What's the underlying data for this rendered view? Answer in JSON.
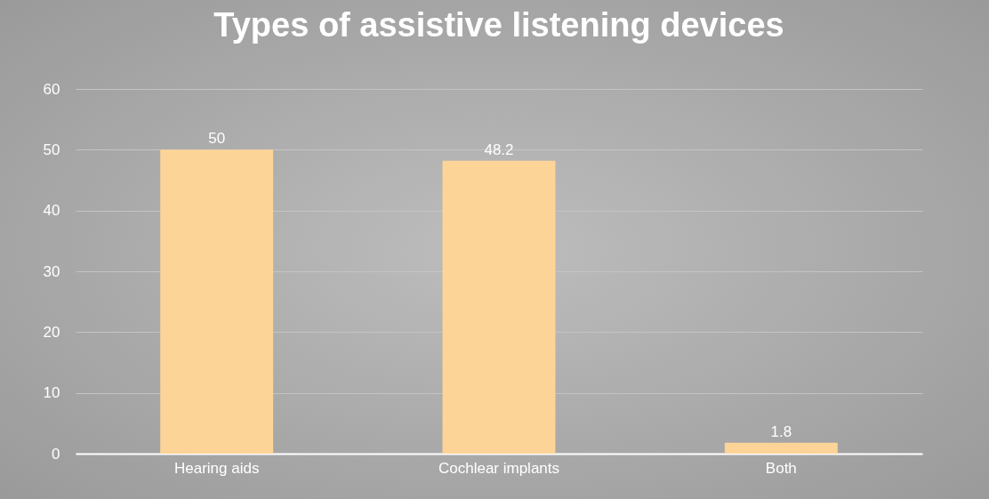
{
  "chart_data": {
    "type": "bar",
    "title": "Types of assistive listening devices",
    "categories": [
      "Hearing aids",
      "Cochlear implants",
      "Both"
    ],
    "values": [
      50,
      48.2,
      1.8
    ],
    "color": "#fdd497",
    "ylim": [
      0,
      60
    ],
    "yticks": [
      0,
      10,
      20,
      30,
      40,
      50,
      60
    ],
    "grid": "y",
    "data_labels": true
  }
}
